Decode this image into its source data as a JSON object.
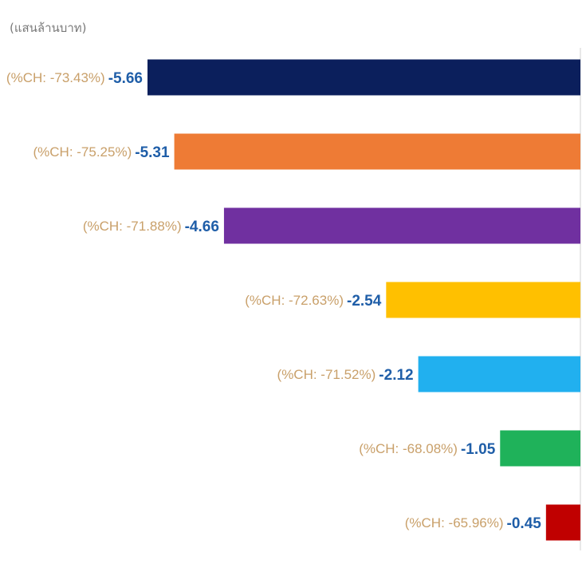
{
  "chart_data": {
    "type": "bar",
    "orientation": "horizontal",
    "unit_label": "(แสนล้านบาท)",
    "xlim": [
      -5.66,
      0
    ],
    "bars": [
      {
        "value": -5.66,
        "value_label": "-5.66",
        "pct_label": "(%CH: -73.43%)",
        "color": "#0b1f5c"
      },
      {
        "value": -5.31,
        "value_label": "-5.31",
        "pct_label": "(%CH: -75.25%)",
        "color": "#ee7b35"
      },
      {
        "value": -4.66,
        "value_label": "-4.66",
        "pct_label": "(%CH: -71.88%)",
        "color": "#7030a0"
      },
      {
        "value": -2.54,
        "value_label": "-2.54",
        "pct_label": "(%CH: -72.63%)",
        "color": "#ffc000"
      },
      {
        "value": -2.12,
        "value_label": "-2.12",
        "pct_label": "(%CH: -71.52%)",
        "color": "#21b0ef"
      },
      {
        "value": -1.05,
        "value_label": "-1.05",
        "pct_label": "(%CH: -68.08%)",
        "color": "#1fb25a"
      },
      {
        "value": -0.45,
        "value_label": "-0.45",
        "pct_label": "(%CH: -65.96%)",
        "color": "#c00000"
      }
    ]
  }
}
